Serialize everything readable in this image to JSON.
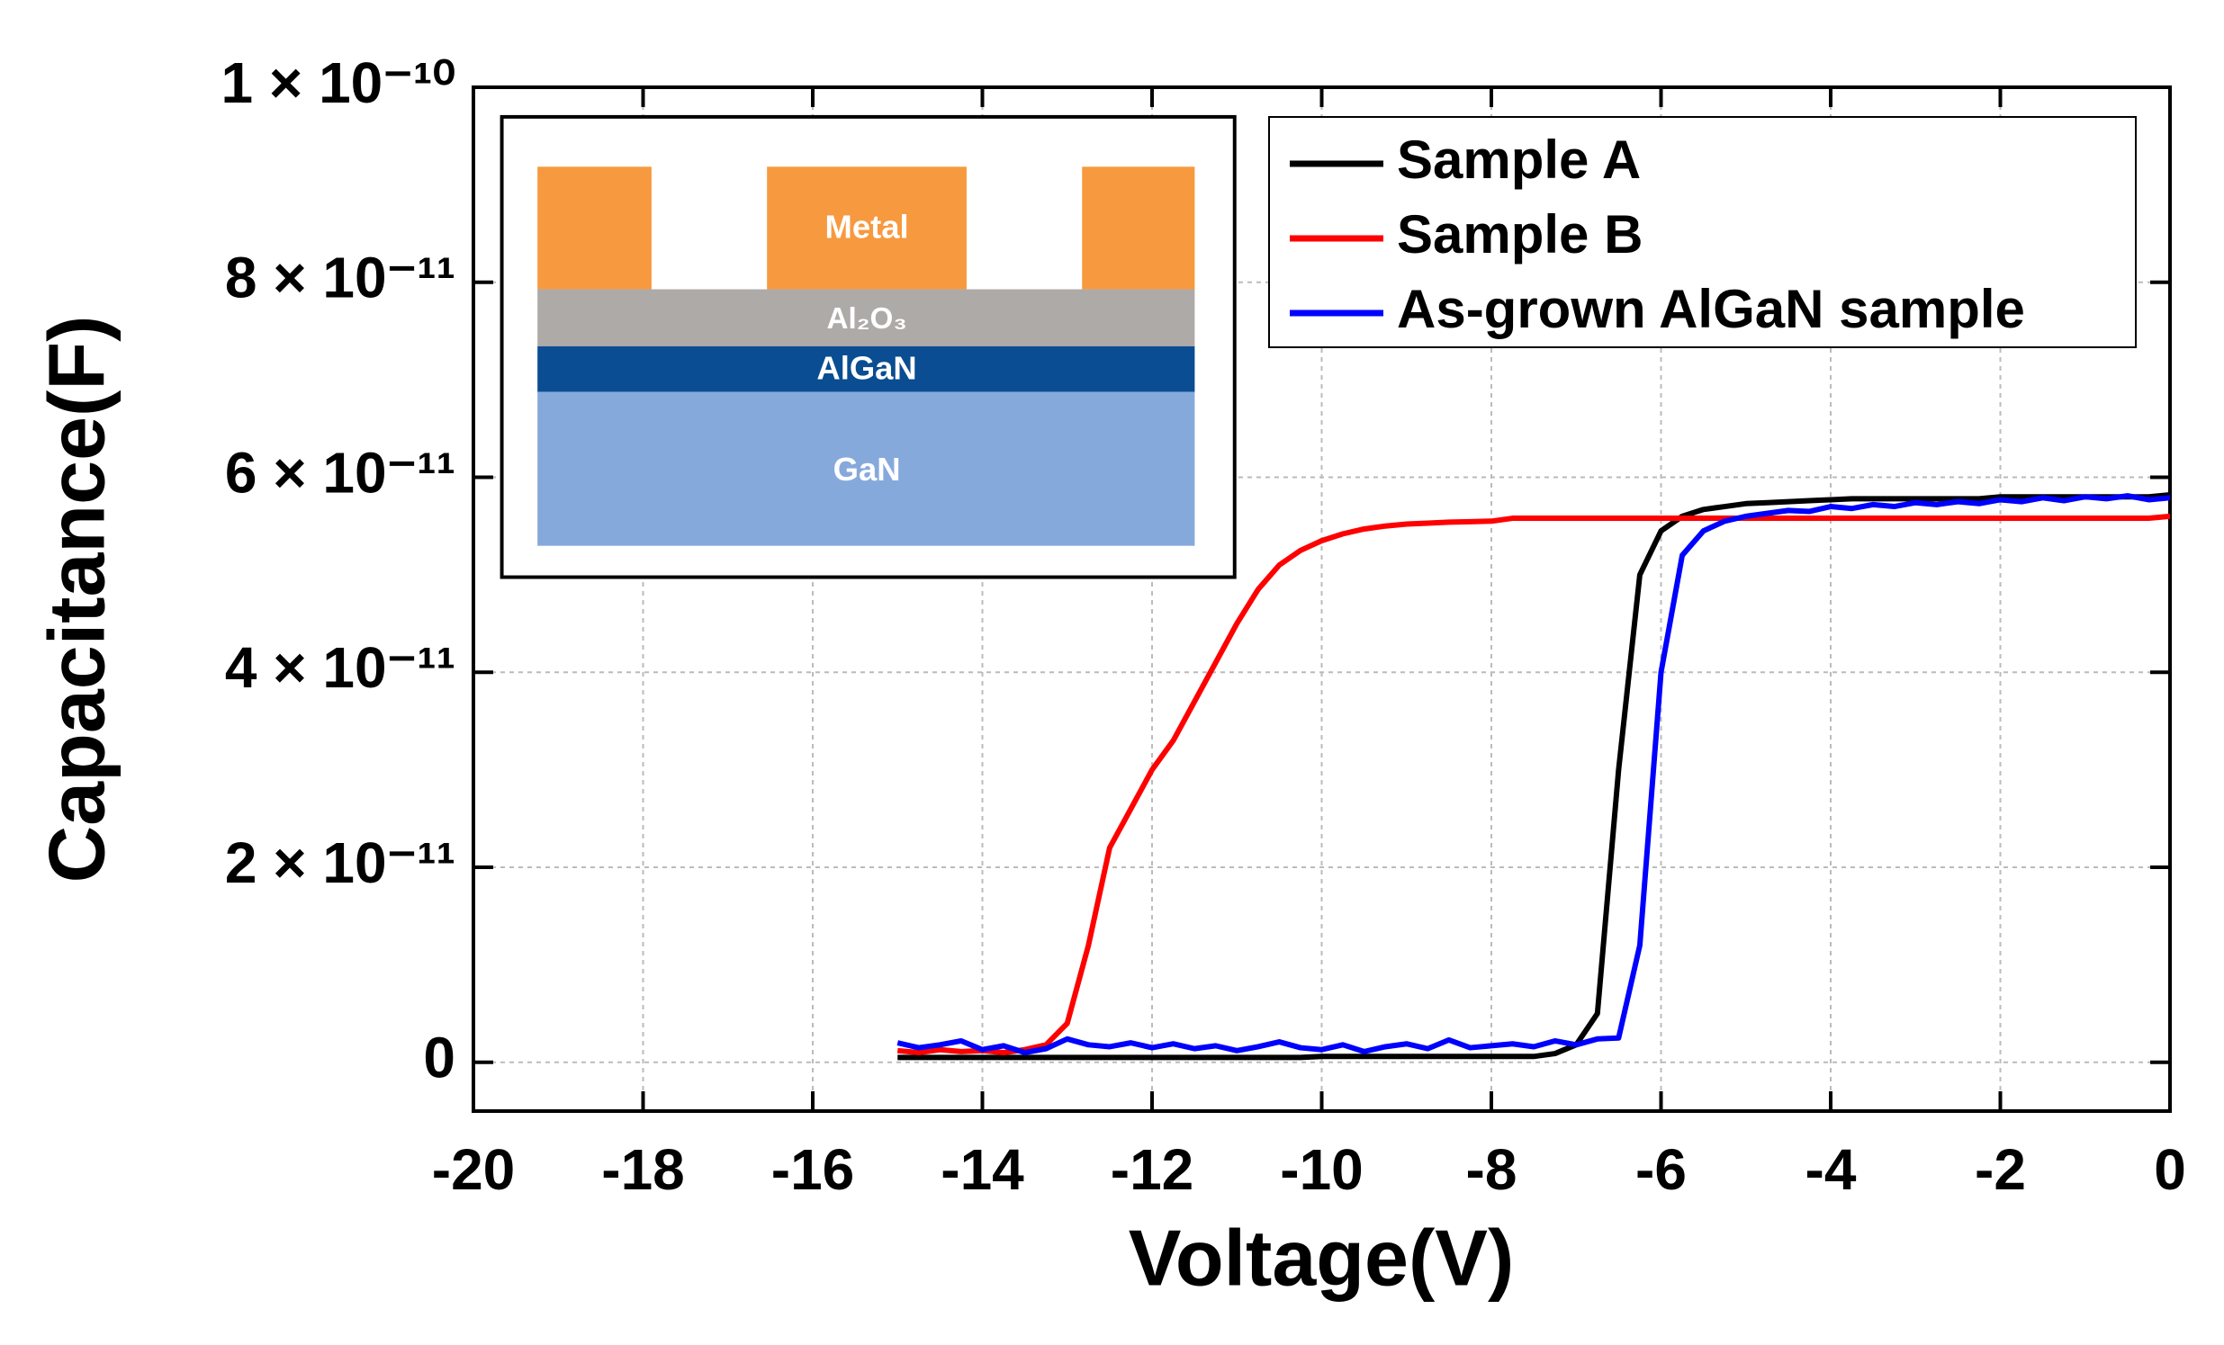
{
  "chart_data": {
    "type": "line",
    "xlabel": "Voltage(V)",
    "ylabel": "Capacitance(F)",
    "x": [
      -15,
      -14.75,
      -14.5,
      -14.25,
      -14,
      -13.75,
      -13.5,
      -13.25,
      -13,
      -12.75,
      -12.5,
      -12.25,
      -12,
      -11.75,
      -11.5,
      -11.25,
      -11,
      -10.75,
      -10.5,
      -10.25,
      -10,
      -9.75,
      -9.5,
      -9.25,
      -9,
      -8.75,
      -8.5,
      -8.25,
      -8,
      -7.75,
      -7.5,
      -7.25,
      -7,
      -6.75,
      -6.5,
      -6.25,
      -6,
      -5.75,
      -5.5,
      -5.25,
      -5,
      -4.75,
      -4.5,
      -4.25,
      -4,
      -3.75,
      -3.5,
      -3.25,
      -3,
      -2.75,
      -2.5,
      -2.25,
      -2,
      -1.75,
      -1.5,
      -1.25,
      -1,
      -0.75,
      -0.5,
      -0.25,
      0
    ],
    "series": [
      {
        "name": "Sample A",
        "color": "#000000",
        "values": [
          5e-13,
          5e-13,
          5e-13,
          5e-13,
          5e-13,
          5e-13,
          5e-13,
          5e-13,
          5e-13,
          5e-13,
          5e-13,
          5e-13,
          5e-13,
          5e-13,
          5e-13,
          5e-13,
          5e-13,
          5e-13,
          5e-13,
          5e-13,
          6e-13,
          6e-13,
          6e-13,
          6e-13,
          6e-13,
          6e-13,
          6e-13,
          6e-13,
          6e-13,
          6e-13,
          6e-13,
          9e-13,
          1.8e-12,
          5e-12,
          3e-11,
          5e-11,
          5.45e-11,
          5.6e-11,
          5.67e-11,
          5.7e-11,
          5.73e-11,
          5.74e-11,
          5.75e-11,
          5.76e-11,
          5.77e-11,
          5.78e-11,
          5.78e-11,
          5.78e-11,
          5.78e-11,
          5.78e-11,
          5.78e-11,
          5.78e-11,
          5.8e-11,
          5.8e-11,
          5.8e-11,
          5.8e-11,
          5.8e-11,
          5.8e-11,
          5.8e-11,
          5.8e-11,
          5.82e-11
        ]
      },
      {
        "name": "Sample B",
        "color": "#ff0000",
        "values": [
          1.2e-12,
          1e-12,
          1.3e-12,
          1.1e-12,
          1.2e-12,
          1e-12,
          1.3e-12,
          1.8e-12,
          4e-12,
          1.2e-11,
          2.2e-11,
          2.6e-11,
          3e-11,
          3.3e-11,
          3.7e-11,
          4.1e-11,
          4.5e-11,
          4.85e-11,
          5.1e-11,
          5.25e-11,
          5.35e-11,
          5.42e-11,
          5.47e-11,
          5.5e-11,
          5.52e-11,
          5.53e-11,
          5.54e-11,
          5.545e-11,
          5.55e-11,
          5.58e-11,
          5.58e-11,
          5.58e-11,
          5.58e-11,
          5.58e-11,
          5.58e-11,
          5.58e-11,
          5.58e-11,
          5.58e-11,
          5.58e-11,
          5.58e-11,
          5.58e-11,
          5.58e-11,
          5.58e-11,
          5.58e-11,
          5.58e-11,
          5.58e-11,
          5.58e-11,
          5.58e-11,
          5.58e-11,
          5.58e-11,
          5.58e-11,
          5.58e-11,
          5.58e-11,
          5.58e-11,
          5.58e-11,
          5.58e-11,
          5.58e-11,
          5.58e-11,
          5.58e-11,
          5.58e-11,
          5.6e-11
        ]
      },
      {
        "name": "As-grown AlGaN sample",
        "color": "#0000ff",
        "values": [
          2e-12,
          1.5e-12,
          1.8e-12,
          2.2e-12,
          1.3e-12,
          1.7e-12,
          1e-12,
          1.4e-12,
          2.4e-12,
          1.8e-12,
          1.6e-12,
          2e-12,
          1.5e-12,
          1.9e-12,
          1.4e-12,
          1.7e-12,
          1.2e-12,
          1.6e-12,
          2.1e-12,
          1.5e-12,
          1.3e-12,
          1.8e-12,
          1.1e-12,
          1.6e-12,
          1.9e-12,
          1.4e-12,
          2.3e-12,
          1.5e-12,
          1.7e-12,
          1.9e-12,
          1.6e-12,
          2.2e-12,
          1.8e-12,
          2.4e-12,
          2.5e-12,
          1.2e-11,
          4e-11,
          5.2e-11,
          5.45e-11,
          5.55e-11,
          5.6e-11,
          5.63e-11,
          5.66e-11,
          5.65e-11,
          5.7e-11,
          5.68e-11,
          5.72e-11,
          5.7e-11,
          5.74e-11,
          5.72e-11,
          5.75e-11,
          5.73e-11,
          5.77e-11,
          5.75e-11,
          5.79e-11,
          5.76e-11,
          5.8e-11,
          5.78e-11,
          5.81e-11,
          5.77e-11,
          5.79e-11
        ]
      }
    ],
    "xlim": [
      -20,
      0
    ],
    "xticks": [
      -20,
      -18,
      -16,
      -14,
      -12,
      -10,
      -8,
      -6,
      -4,
      -2,
      0
    ],
    "ylim": [
      -5e-12,
      1e-10
    ],
    "yticks": [
      0,
      {
        "value": 2e-11,
        "label": "2 × 10⁻¹¹"
      },
      {
        "value": 4e-11,
        "label": "4 × 10⁻¹¹"
      },
      {
        "value": 6e-11,
        "label": "6 × 10⁻¹¹"
      },
      {
        "value": 8e-11,
        "label": "8 × 10⁻¹¹"
      },
      {
        "value": 1e-10,
        "label": "1 × 10⁻¹⁰"
      }
    ],
    "grid": true,
    "legend": "upper right"
  },
  "inset": {
    "labels": [
      "Metal",
      "Al₂O₃",
      "AlGaN",
      "GaN"
    ]
  }
}
